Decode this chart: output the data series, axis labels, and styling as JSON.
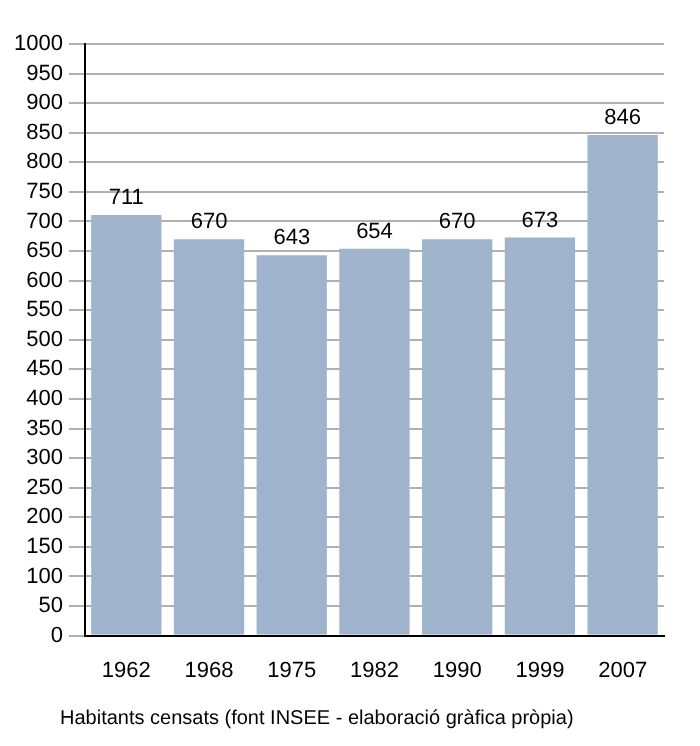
{
  "chart_data": {
    "type": "bar",
    "categories": [
      "1962",
      "1968",
      "1975",
      "1982",
      "1990",
      "1999",
      "2007"
    ],
    "values": [
      711,
      670,
      643,
      654,
      670,
      673,
      846
    ],
    "color": "#9fb4cc",
    "ylim": [
      0,
      1000
    ],
    "yticks": [
      0,
      50,
      100,
      150,
      200,
      250,
      300,
      350,
      400,
      450,
      500,
      550,
      600,
      650,
      700,
      750,
      800,
      850,
      900,
      950,
      1000
    ],
    "grid": "y",
    "legend": false,
    "data_labels": true,
    "annotations": [
      "Habitants censats (font INSEE - elaboració gràfica pròpia)"
    ]
  }
}
